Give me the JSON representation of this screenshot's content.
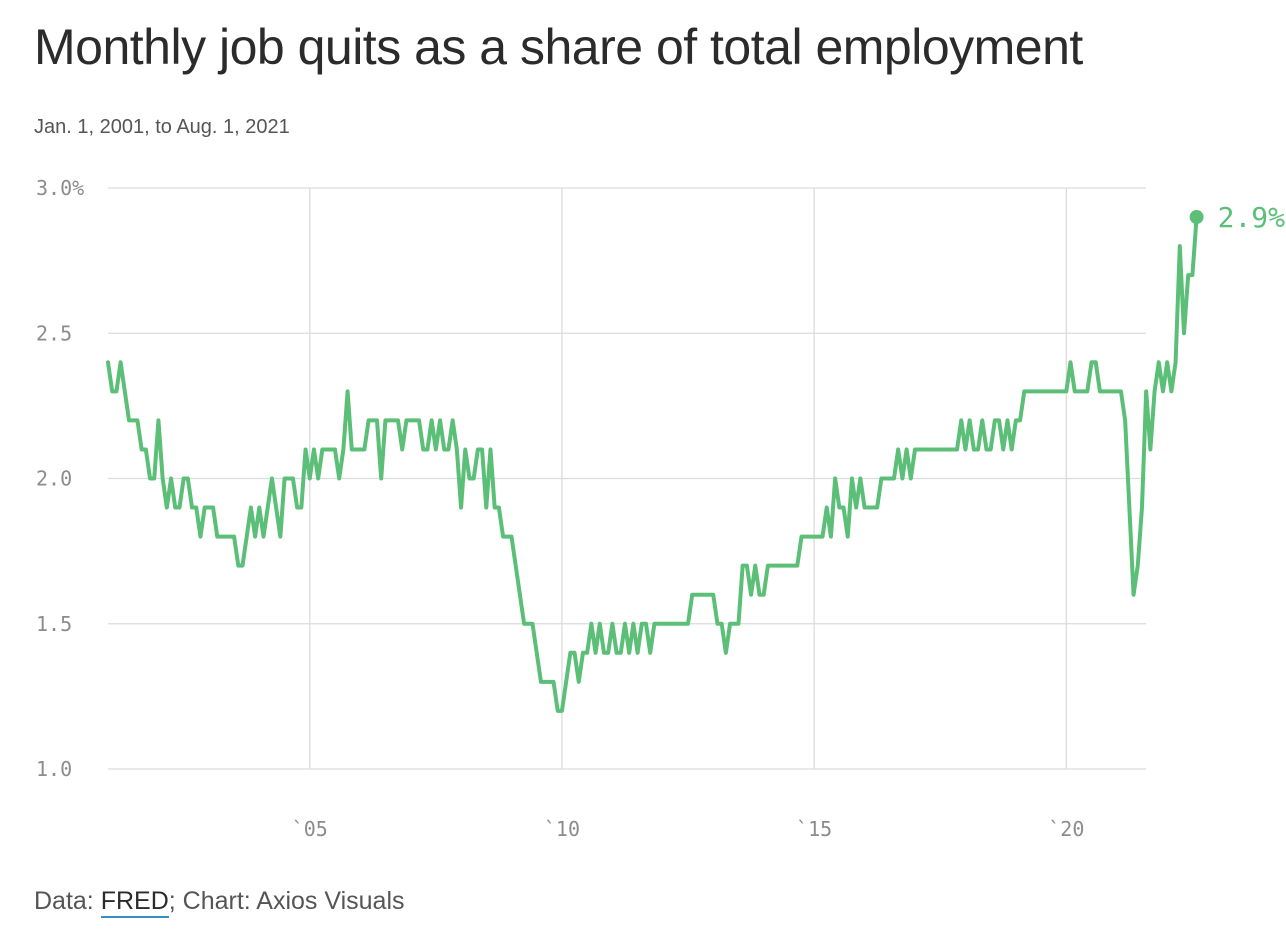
{
  "header": {
    "title": "Monthly job quits as a share of total employment",
    "subtitle": "Jan. 1, 2001, to Aug. 1, 2021"
  },
  "footer": {
    "data_prefix": "Data: ",
    "source_link": "FRED",
    "credit": "; Chart: Axios Visuals"
  },
  "colors": {
    "line": "#5cbf78",
    "grid": "#dcdcdc",
    "tick_text": "#8c8c8c",
    "title": "#2b2b2b",
    "link_underline": "#3a8ec4"
  },
  "chart_data": {
    "type": "line",
    "title": "Monthly job quits as a share of total employment",
    "subtitle": "Jan. 1, 2001, to Aug. 1, 2021",
    "xlabel": "",
    "ylabel": "",
    "x_start": "2001-01",
    "x_end": "2021-08",
    "xlim": [
      2001.0,
      2021.58
    ],
    "ylim": [
      1.0,
      3.0
    ],
    "y_ticks": [
      {
        "value": 3.0,
        "label": "3.0%"
      },
      {
        "value": 2.5,
        "label": "2.5"
      },
      {
        "value": 2.0,
        "label": "2.0"
      },
      {
        "value": 1.5,
        "label": "1.5"
      },
      {
        "value": 1.0,
        "label": "1.0"
      }
    ],
    "x_ticks": [
      {
        "value": 2005,
        "label": "`05"
      },
      {
        "value": 2010,
        "label": "`10"
      },
      {
        "value": 2015,
        "label": "`15"
      },
      {
        "value": 2020,
        "label": "`20"
      }
    ],
    "grid": true,
    "end_label": "2.9%",
    "series": [
      {
        "values": [
          2.4,
          2.3,
          2.3,
          2.4,
          2.3,
          2.2,
          2.2,
          2.2,
          2.1,
          2.1,
          2.0,
          2.0,
          2.2,
          2.0,
          1.9,
          2.0,
          1.9,
          1.9,
          2.0,
          2.0,
          1.9,
          1.9,
          1.8,
          1.9,
          1.9,
          1.9,
          1.8,
          1.8,
          1.8,
          1.8,
          1.8,
          1.7,
          1.7,
          1.8,
          1.9,
          1.8,
          1.9,
          1.8,
          1.9,
          2.0,
          1.9,
          1.8,
          2.0,
          2.0,
          2.0,
          1.9,
          1.9,
          2.1,
          2.0,
          2.1,
          2.0,
          2.1,
          2.1,
          2.1,
          2.1,
          2.0,
          2.1,
          2.3,
          2.1,
          2.1,
          2.1,
          2.1,
          2.2,
          2.2,
          2.2,
          2.0,
          2.2,
          2.2,
          2.2,
          2.2,
          2.1,
          2.2,
          2.2,
          2.2,
          2.2,
          2.1,
          2.1,
          2.2,
          2.1,
          2.2,
          2.1,
          2.1,
          2.2,
          2.1,
          1.9,
          2.1,
          2.0,
          2.0,
          2.1,
          2.1,
          1.9,
          2.1,
          1.9,
          1.9,
          1.8,
          1.8,
          1.8,
          1.7,
          1.6,
          1.5,
          1.5,
          1.5,
          1.4,
          1.3,
          1.3,
          1.3,
          1.3,
          1.2,
          1.2,
          1.3,
          1.4,
          1.4,
          1.3,
          1.4,
          1.4,
          1.5,
          1.4,
          1.5,
          1.4,
          1.4,
          1.5,
          1.4,
          1.4,
          1.5,
          1.4,
          1.5,
          1.4,
          1.5,
          1.5,
          1.4,
          1.5,
          1.5,
          1.5,
          1.5,
          1.5,
          1.5,
          1.5,
          1.5,
          1.5,
          1.6,
          1.6,
          1.6,
          1.6,
          1.6,
          1.6,
          1.5,
          1.5,
          1.4,
          1.5,
          1.5,
          1.5,
          1.7,
          1.7,
          1.6,
          1.7,
          1.6,
          1.6,
          1.7,
          1.7,
          1.7,
          1.7,
          1.7,
          1.7,
          1.7,
          1.7,
          1.8,
          1.8,
          1.8,
          1.8,
          1.8,
          1.8,
          1.9,
          1.8,
          2.0,
          1.9,
          1.9,
          1.8,
          2.0,
          1.9,
          2.0,
          1.9,
          1.9,
          1.9,
          1.9,
          2.0,
          2.0,
          2.0,
          2.0,
          2.1,
          2.0,
          2.1,
          2.0,
          2.1,
          2.1,
          2.1,
          2.1,
          2.1,
          2.1,
          2.1,
          2.1,
          2.1,
          2.1,
          2.1,
          2.2,
          2.1,
          2.2,
          2.1,
          2.1,
          2.2,
          2.1,
          2.1,
          2.2,
          2.2,
          2.1,
          2.2,
          2.1,
          2.2,
          2.2,
          2.3,
          2.3,
          2.3,
          2.3,
          2.3,
          2.3,
          2.3,
          2.3,
          2.3,
          2.3,
          2.3,
          2.4,
          2.3,
          2.3,
          2.3,
          2.3,
          2.4,
          2.4,
          2.3,
          2.3,
          2.3,
          2.3,
          2.3,
          2.3,
          2.2,
          1.9,
          1.6,
          1.7,
          1.9,
          2.3,
          2.1,
          2.3,
          2.4,
          2.3,
          2.4,
          2.3,
          2.4,
          2.8,
          2.5,
          2.7,
          2.7,
          2.9
        ]
      }
    ]
  }
}
